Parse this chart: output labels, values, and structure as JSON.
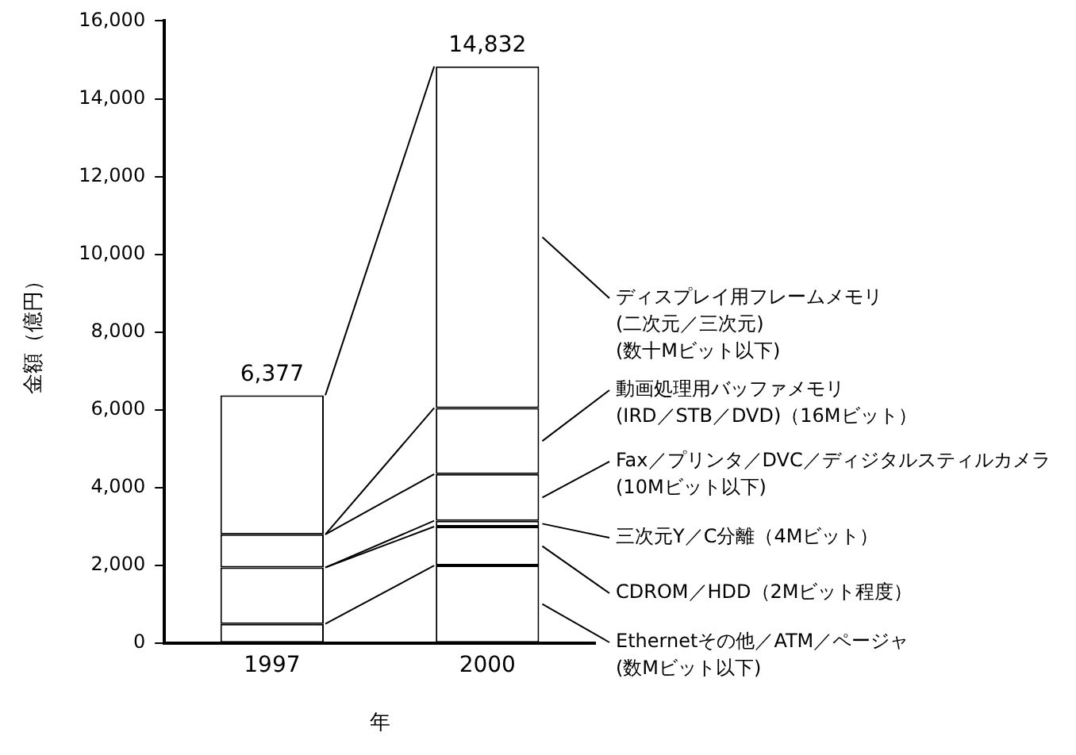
{
  "chart_data": {
    "type": "bar",
    "stacked": true,
    "xlabel": "年",
    "ylabel": "金額（億円）",
    "categories": [
      "1997",
      "2000"
    ],
    "series": [
      {
        "name": "Ethernetその他／ATM／ページャ\n(数Mビット以下)",
        "color": "#ffffff",
        "values": [
          500,
          2000
        ]
      },
      {
        "name": "CDROM／HDD（2Mビット程度）",
        "color": "#ffffff",
        "values": [
          1450,
          1000
        ]
      },
      {
        "name": "三次元Y／C分離（4Mビット）",
        "color": "#ffffff",
        "values": [
          0,
          150
        ]
      },
      {
        "name": "Fax／プリンタ／DVC／ディジタルスティルカメラ\n(10Mビット以下)",
        "color": "#ffffff",
        "values": [
          850,
          1200
        ]
      },
      {
        "name": "動画処理用バッファメモリ\n(IRD／STB／DVD)（16Mビット）",
        "color": "#ffffff",
        "values": [
          0,
          1700
        ]
      },
      {
        "name": "ディスプレイ用フレームメモリ\n(二次元／三次元)\n(数十Mビット以下)",
        "color": "#ffffff",
        "values": [
          3577,
          8782
        ]
      }
    ],
    "totals": [
      "6,377",
      "14,832"
    ],
    "ylim": [
      0,
      16000
    ],
    "yticks": [
      0,
      {
        "value": 2000,
        "label": "2,000"
      },
      {
        "value": 4000,
        "label": "4,000"
      },
      {
        "value": 6000,
        "label": "6,000"
      },
      {
        "value": 8000,
        "label": "8,000"
      },
      {
        "value": 10000,
        "label": "10,000"
      },
      {
        "value": 12000,
        "label": "12,000"
      },
      {
        "value": 14000,
        "label": "14,000"
      },
      {
        "value": 16000,
        "label": "16,000"
      }
    ],
    "grid": false,
    "legend": "right"
  }
}
